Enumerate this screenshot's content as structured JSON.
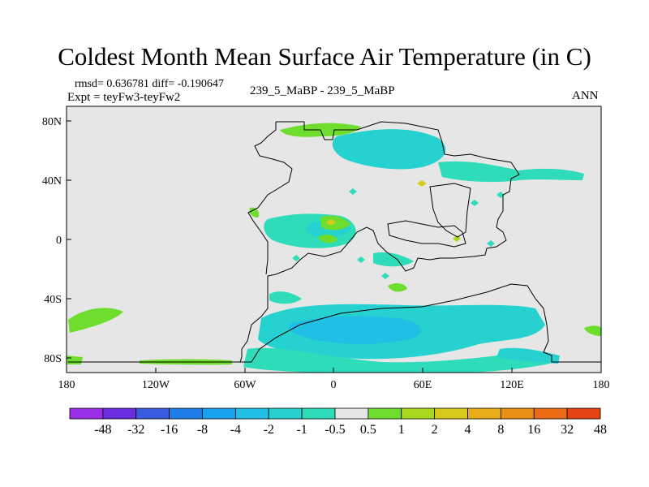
{
  "title": "Coldest Month Mean Surface Air Temperature (in C)",
  "stats": "rmsd= 0.636781 diff= -0.190647",
  "experiment": "Expt = teyFw3-teyFw2",
  "case_label": "239_5_MaBP - 239_5_MaBP",
  "season": "ANN",
  "lat_ticks": [
    "80N",
    "40N",
    "0",
    "40S",
    "80S"
  ],
  "lon_ticks": [
    "180",
    "120W",
    "60W",
    "0",
    "60E",
    "120E",
    "180"
  ],
  "colorbar": {
    "labels": [
      "-48",
      "-32",
      "-16",
      "-8",
      "-4",
      "-2",
      "-1",
      "-0.5",
      "0.5",
      "1",
      "2",
      "4",
      "8",
      "16",
      "32",
      "48"
    ],
    "colors": [
      "#9b30e8",
      "#6a2ee0",
      "#3a5ae0",
      "#1e7de8",
      "#19a3ef",
      "#21bfe5",
      "#25d2cf",
      "#2fdcb9",
      "#e6e6e6",
      "#6fdd2d",
      "#a8d91f",
      "#d8c81c",
      "#e8ac18",
      "#ea8f16",
      "#ec6a14",
      "#e84312"
    ]
  }
}
